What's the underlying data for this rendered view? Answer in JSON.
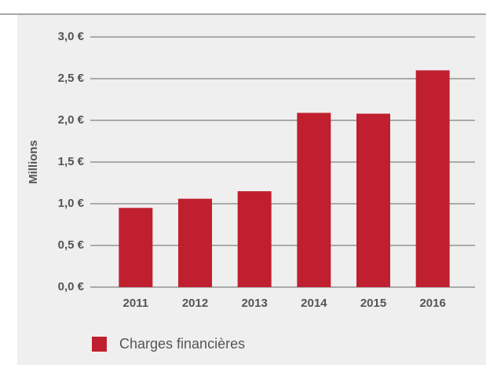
{
  "chart_data": {
    "type": "bar",
    "y_axis_label": "Millions",
    "categories": [
      "2011",
      "2012",
      "2013",
      "2014",
      "2015",
      "2016"
    ],
    "series": [
      {
        "name": "Charges financières",
        "color": "#c01f2f",
        "values": [
          0.95,
          1.06,
          1.15,
          2.09,
          2.08,
          2.6
        ]
      }
    ],
    "ylim": [
      0,
      3
    ],
    "yticks": [
      {
        "value": 0,
        "label": "0,0 €"
      },
      {
        "value": 0.5,
        "label": "0,5 €"
      },
      {
        "value": 1,
        "label": "1,0 €"
      },
      {
        "value": 1.5,
        "label": "1,5 €"
      },
      {
        "value": 2,
        "label": "2,0 €"
      },
      {
        "value": 2.5,
        "label": "2,5 €"
      },
      {
        "value": 3,
        "label": "3,0 €"
      }
    ],
    "grid": true
  }
}
